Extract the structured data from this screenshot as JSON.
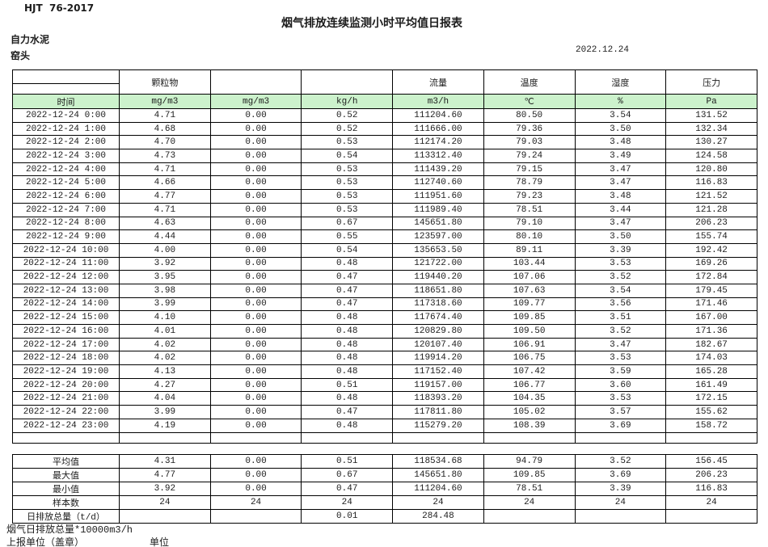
{
  "page": {
    "standard_code": "HJT  76-2017",
    "title": "烟气排放连续监测小时平均值日报表",
    "company": "自力水泥",
    "station": "窑头",
    "date": "2022.12.24"
  },
  "table": {
    "group_headers": [
      "",
      "颗粒物",
      "",
      "",
      "流量",
      "温度",
      "湿度",
      "压力"
    ],
    "unit_row": [
      "时间",
      "mg/m3",
      "mg/m3",
      "kg/h",
      "m3/h",
      "℃",
      "%",
      "Pa"
    ],
    "rows": [
      {
        "time": "2022-12-24 0:00",
        "values": [
          "4.71",
          "0.00",
          "0.52",
          "111204.60",
          "80.50",
          "3.54",
          "131.52"
        ]
      },
      {
        "time": "2022-12-24 1:00",
        "values": [
          "4.68",
          "0.00",
          "0.52",
          "111666.00",
          "79.36",
          "3.50",
          "132.34"
        ]
      },
      {
        "time": "2022-12-24 2:00",
        "values": [
          "4.70",
          "0.00",
          "0.53",
          "112174.20",
          "79.03",
          "3.48",
          "130.27"
        ]
      },
      {
        "time": "2022-12-24 3:00",
        "values": [
          "4.73",
          "0.00",
          "0.54",
          "113312.40",
          "79.24",
          "3.49",
          "124.58"
        ]
      },
      {
        "time": "2022-12-24 4:00",
        "values": [
          "4.71",
          "0.00",
          "0.53",
          "111439.20",
          "79.15",
          "3.47",
          "120.80"
        ]
      },
      {
        "time": "2022-12-24 5:00",
        "values": [
          "4.66",
          "0.00",
          "0.53",
          "112740.60",
          "78.79",
          "3.47",
          "116.83"
        ]
      },
      {
        "time": "2022-12-24 6:00",
        "values": [
          "4.77",
          "0.00",
          "0.53",
          "111951.60",
          "79.23",
          "3.48",
          "121.52"
        ]
      },
      {
        "time": "2022-12-24 7:00",
        "values": [
          "4.71",
          "0.00",
          "0.53",
          "111989.40",
          "78.51",
          "3.44",
          "121.28"
        ]
      },
      {
        "time": "2022-12-24 8:00",
        "values": [
          "4.63",
          "0.00",
          "0.67",
          "145651.80",
          "79.10",
          "3.47",
          "206.23"
        ]
      },
      {
        "time": "2022-12-24 9:00",
        "values": [
          "4.44",
          "0.00",
          "0.55",
          "123597.00",
          "80.10",
          "3.50",
          "155.74"
        ]
      },
      {
        "time": "2022-12-24 10:00",
        "values": [
          "4.00",
          "0.00",
          "0.54",
          "135653.50",
          "89.11",
          "3.39",
          "192.42"
        ]
      },
      {
        "time": "2022-12-24 11:00",
        "values": [
          "3.92",
          "0.00",
          "0.48",
          "121722.00",
          "103.44",
          "3.53",
          "169.26"
        ]
      },
      {
        "time": "2022-12-24 12:00",
        "values": [
          "3.95",
          "0.00",
          "0.47",
          "119440.20",
          "107.06",
          "3.52",
          "172.84"
        ]
      },
      {
        "time": "2022-12-24 13:00",
        "values": [
          "3.98",
          "0.00",
          "0.47",
          "118651.80",
          "107.63",
          "3.54",
          "179.45"
        ]
      },
      {
        "time": "2022-12-24 14:00",
        "values": [
          "3.99",
          "0.00",
          "0.47",
          "117318.60",
          "109.77",
          "3.56",
          "171.46"
        ]
      },
      {
        "time": "2022-12-24 15:00",
        "values": [
          "4.10",
          "0.00",
          "0.48",
          "117674.40",
          "109.85",
          "3.51",
          "167.00"
        ]
      },
      {
        "time": "2022-12-24 16:00",
        "values": [
          "4.01",
          "0.00",
          "0.48",
          "120829.80",
          "109.50",
          "3.52",
          "171.36"
        ]
      },
      {
        "time": "2022-12-24 17:00",
        "values": [
          "4.02",
          "0.00",
          "0.48",
          "120107.40",
          "106.91",
          "3.47",
          "182.67"
        ]
      },
      {
        "time": "2022-12-24 18:00",
        "values": [
          "4.02",
          "0.00",
          "0.48",
          "119914.20",
          "106.75",
          "3.53",
          "174.03"
        ]
      },
      {
        "time": "2022-12-24 19:00",
        "values": [
          "4.13",
          "0.00",
          "0.48",
          "117152.40",
          "107.42",
          "3.59",
          "165.28"
        ]
      },
      {
        "time": "2022-12-24 20:00",
        "values": [
          "4.27",
          "0.00",
          "0.51",
          "119157.00",
          "106.77",
          "3.60",
          "161.49"
        ]
      },
      {
        "time": "2022-12-24 21:00",
        "values": [
          "4.04",
          "0.00",
          "0.48",
          "118393.20",
          "104.35",
          "3.53",
          "172.15"
        ]
      },
      {
        "time": "2022-12-24 22:00",
        "values": [
          "3.99",
          "0.00",
          "0.47",
          "117811.80",
          "105.02",
          "3.57",
          "155.62"
        ]
      },
      {
        "time": "2022-12-24 23:00",
        "values": [
          "4.19",
          "0.00",
          "0.48",
          "115279.20",
          "108.39",
          "3.69",
          "158.72"
        ]
      }
    ]
  },
  "summary": {
    "rows": [
      {
        "label": "平均值",
        "values": [
          "4.31",
          "0.00",
          "0.51",
          "118534.68",
          "94.79",
          "3.52",
          "156.45"
        ]
      },
      {
        "label": "最大值",
        "values": [
          "4.77",
          "0.00",
          "0.67",
          "145651.80",
          "109.85",
          "3.69",
          "206.23"
        ]
      },
      {
        "label": "最小值",
        "values": [
          "3.92",
          "0.00",
          "0.47",
          "111204.60",
          "78.51",
          "3.39",
          "116.83"
        ]
      },
      {
        "label": "样本数",
        "values": [
          "24",
          "24",
          "24",
          "24",
          "24",
          "24",
          "24"
        ]
      },
      {
        "label": "日排放总量（t/d）",
        "values": [
          "",
          "",
          "0.01",
          "284.48",
          "",
          "",
          ""
        ]
      }
    ]
  },
  "footer": {
    "note": "烟气日排放总量*10000m3/h",
    "report_unit_label": "上报单位（盖章）",
    "unit_label": "单位"
  },
  "colors": {
    "header_green": "#ccf2cc",
    "border": "#000000",
    "text": "#1c1c1c"
  }
}
